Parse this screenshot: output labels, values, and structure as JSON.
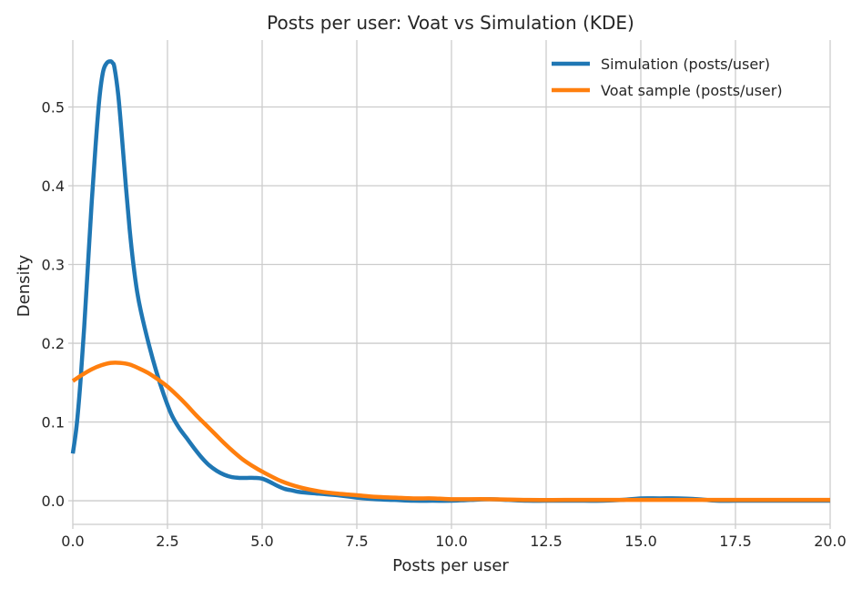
{
  "chart_data": {
    "type": "line",
    "title": "Posts per user: Voat vs Simulation (KDE)",
    "xlabel": "Posts per user",
    "ylabel": "Density",
    "xlim": [
      0,
      20
    ],
    "ylim": [
      -0.03,
      0.585
    ],
    "xticks": [
      0,
      2.5,
      5,
      7.5,
      10,
      12.5,
      15,
      17.5,
      20
    ],
    "xtick_labels": [
      "0.0",
      "2.5",
      "5.0",
      "7.5",
      "10.0",
      "12.5",
      "15.0",
      "17.5",
      "20.0"
    ],
    "yticks": [
      0,
      0.1,
      0.2,
      0.3,
      0.4,
      0.5
    ],
    "ytick_labels": [
      "0.0",
      "0.1",
      "0.2",
      "0.3",
      "0.4",
      "0.5"
    ],
    "grid": true,
    "legend_position": "top-right",
    "series": [
      {
        "name": "Simulation (posts/user)",
        "color": "#1f77b4",
        "x": [
          0,
          0.1,
          0.2,
          0.3,
          0.4,
          0.5,
          0.6,
          0.7,
          0.8,
          0.9,
          1.0,
          1.05,
          1.1,
          1.2,
          1.3,
          1.4,
          1.5,
          1.6,
          1.7,
          1.8,
          2.0,
          2.2,
          2.4,
          2.6,
          2.8,
          3.0,
          3.2,
          3.4,
          3.6,
          3.8,
          4.0,
          4.2,
          4.4,
          4.6,
          4.8,
          5.0,
          5.2,
          5.4,
          5.6,
          5.8,
          6.0,
          6.5,
          7.0,
          7.5,
          8.0,
          8.5,
          9.0,
          9.5,
          10.0,
          10.5,
          11.0,
          11.5,
          12.0,
          12.5,
          13.0,
          13.5,
          14.0,
          14.5,
          15.0,
          15.5,
          16.0,
          16.5,
          17.0,
          17.5,
          18.0,
          18.5,
          19.0,
          19.5,
          20.0
        ],
        "values": [
          0.06,
          0.095,
          0.15,
          0.22,
          0.3,
          0.38,
          0.45,
          0.51,
          0.545,
          0.556,
          0.558,
          0.556,
          0.55,
          0.515,
          0.46,
          0.4,
          0.345,
          0.3,
          0.265,
          0.24,
          0.2,
          0.165,
          0.135,
          0.11,
          0.093,
          0.08,
          0.067,
          0.055,
          0.045,
          0.038,
          0.033,
          0.03,
          0.029,
          0.029,
          0.029,
          0.028,
          0.024,
          0.019,
          0.015,
          0.013,
          0.011,
          0.009,
          0.007,
          0.004,
          0.002,
          0.001,
          0.0,
          0.0,
          0.0,
          0.001,
          0.002,
          0.001,
          0.0,
          0.0,
          0.0,
          0.0,
          0.0,
          0.001,
          0.003,
          0.003,
          0.003,
          0.002,
          0.0,
          0.0,
          0.0,
          0.0,
          0.0,
          0.0,
          0.0
        ]
      },
      {
        "name": "Voat sample (posts/user)",
        "color": "#ff7f0e",
        "x": [
          0,
          0.25,
          0.5,
          0.75,
          1.0,
          1.25,
          1.5,
          1.75,
          2.0,
          2.25,
          2.5,
          2.75,
          3.0,
          3.25,
          3.5,
          3.75,
          4.0,
          4.25,
          4.5,
          4.75,
          5.0,
          5.5,
          6.0,
          6.5,
          7.0,
          7.5,
          8.0,
          8.5,
          9.0,
          9.5,
          10.0,
          11.0,
          12.0,
          13.0,
          14.0,
          15.0,
          16.0,
          17.0,
          18.0,
          19.0,
          20.0
        ],
        "values": [
          0.152,
          0.16,
          0.167,
          0.172,
          0.175,
          0.175,
          0.173,
          0.168,
          0.162,
          0.154,
          0.145,
          0.134,
          0.122,
          0.109,
          0.097,
          0.085,
          0.073,
          0.062,
          0.052,
          0.044,
          0.037,
          0.025,
          0.017,
          0.012,
          0.009,
          0.007,
          0.005,
          0.004,
          0.003,
          0.003,
          0.002,
          0.002,
          0.001,
          0.001,
          0.001,
          0.001,
          0.001,
          0.001,
          0.001,
          0.001,
          0.001
        ]
      }
    ]
  }
}
